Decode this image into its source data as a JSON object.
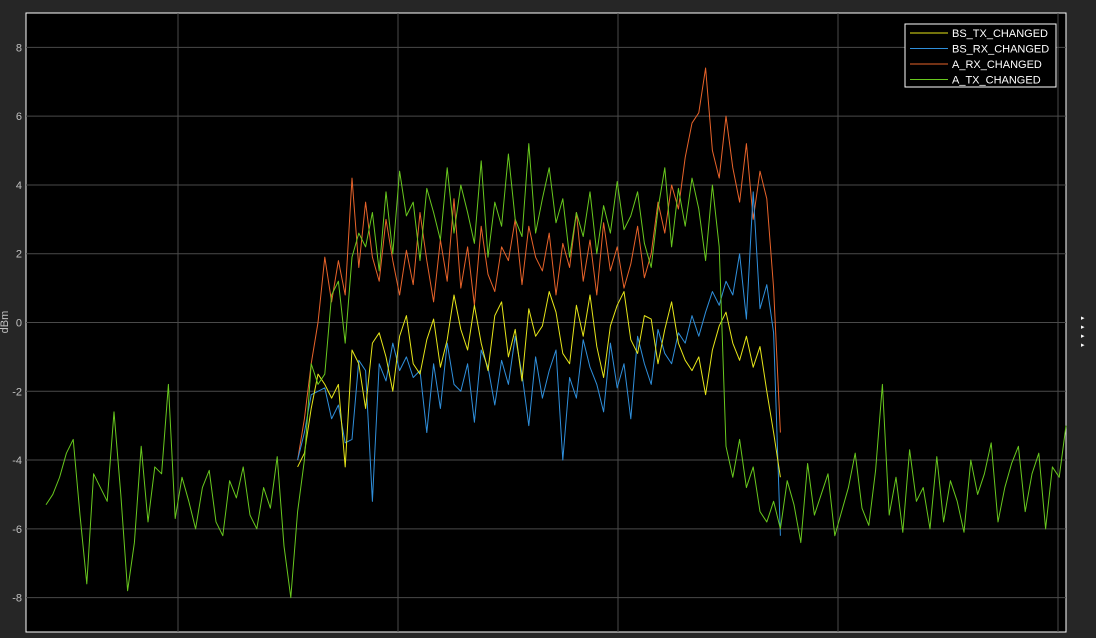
{
  "chart_data": {
    "type": "line",
    "title": "",
    "xlabel": "",
    "ylabel": "dBm",
    "ylim": [
      -9,
      9
    ],
    "xlim": [
      0,
      300
    ],
    "yticks": [
      "-8",
      "-6",
      "-4",
      "-2",
      "0",
      "2",
      "4",
      "6",
      "8"
    ],
    "xticks_gridlines": 5,
    "grid": true,
    "legend_position": "top-right",
    "background": "#000000",
    "series": [
      {
        "name": "BS_TX_CHANGED",
        "color": "#e6e619",
        "x": [
          74,
          76,
          78,
          80,
          82,
          84,
          86,
          88,
          90,
          92,
          94,
          96,
          98,
          100,
          102,
          104,
          106,
          108,
          110,
          112,
          114,
          116,
          118,
          120,
          122,
          124,
          126,
          128,
          130,
          132,
          134,
          136,
          138,
          140,
          142,
          144,
          146,
          148,
          150,
          152,
          154,
          156,
          158,
          160,
          162,
          164,
          166,
          168,
          170,
          172,
          174,
          176,
          178,
          180,
          182,
          184,
          186,
          188,
          190,
          192,
          194,
          196,
          198,
          200,
          202,
          204,
          206,
          208,
          210,
          212,
          214,
          216
        ],
        "values": [
          -4.2,
          -3.8,
          -2.5,
          -1.5,
          -1.8,
          -2.2,
          -1.8,
          -4.2,
          -0.8,
          -1.2,
          -2.5,
          -0.6,
          -0.3,
          -1.0,
          -2.0,
          -0.4,
          0.2,
          -1.2,
          -1.5,
          -0.5,
          0.1,
          -1.3,
          -0.5,
          0.8,
          -0.2,
          -0.8,
          0.5,
          -0.6,
          -1.4,
          0.2,
          0.6,
          -1.0,
          -0.2,
          -1.7,
          0.4,
          -0.4,
          -0.1,
          0.9,
          0.3,
          -0.9,
          -1.2,
          0.5,
          -0.4,
          0.8,
          -0.7,
          -1.6,
          -0.1,
          0.5,
          0.9,
          -0.5,
          -0.9,
          0.2,
          0.1,
          -1.2,
          -0.2,
          0.6,
          -0.6,
          -1.1,
          -1.4,
          -1.0,
          -2.1,
          -0.8,
          -0.1,
          0.3,
          -0.6,
          -1.1,
          -0.4,
          -1.3,
          -0.7,
          -2.0,
          -3.2,
          -4.5
        ]
      },
      {
        "name": "BS_RX_CHANGED",
        "color": "#2f8fdb",
        "x": [
          74,
          76,
          78,
          80,
          82,
          84,
          86,
          88,
          90,
          92,
          94,
          96,
          98,
          100,
          102,
          104,
          106,
          108,
          110,
          112,
          114,
          116,
          118,
          120,
          122,
          124,
          126,
          128,
          130,
          132,
          134,
          136,
          138,
          140,
          142,
          144,
          146,
          148,
          150,
          152,
          154,
          156,
          158,
          160,
          162,
          164,
          166,
          168,
          170,
          172,
          174,
          176,
          178,
          180,
          182,
          184,
          186,
          188,
          190,
          192,
          194,
          196,
          198,
          200,
          202,
          204,
          206,
          208,
          210,
          212,
          214,
          216
        ],
        "values": [
          -4.0,
          -3.2,
          -2.1,
          -2.0,
          -1.9,
          -2.8,
          -2.4,
          -3.5,
          -3.4,
          -1.1,
          -1.4,
          -5.2,
          -1.2,
          -1.7,
          -0.6,
          -1.4,
          -1.0,
          -1.6,
          -1.4,
          -3.2,
          -1.2,
          -2.5,
          -0.6,
          -1.8,
          -2.0,
          -1.2,
          -2.9,
          -0.8,
          -1.3,
          -2.4,
          -1.1,
          -1.8,
          -0.4,
          -1.5,
          -3.0,
          -1.0,
          -2.2,
          -1.4,
          -0.8,
          -4.0,
          -1.6,
          -2.2,
          -0.5,
          -1.3,
          -1.8,
          -2.6,
          -0.6,
          -1.9,
          -1.2,
          -2.8,
          -0.4,
          -1.2,
          -1.8,
          -0.2,
          -0.9,
          -1.2,
          -0.3,
          -0.6,
          0.2,
          -0.4,
          0.3,
          0.9,
          0.5,
          1.2,
          0.8,
          2.0,
          0.1,
          3.8,
          0.4,
          1.1,
          -0.3,
          -6.2
        ]
      },
      {
        "name": "A_RX_CHANGED",
        "color": "#e8632a",
        "x": [
          74,
          76,
          78,
          80,
          82,
          84,
          86,
          88,
          90,
          92,
          94,
          96,
          98,
          100,
          102,
          104,
          106,
          108,
          110,
          112,
          114,
          116,
          118,
          120,
          122,
          124,
          126,
          128,
          130,
          132,
          134,
          136,
          138,
          140,
          142,
          144,
          146,
          148,
          150,
          152,
          154,
          156,
          158,
          160,
          162,
          164,
          166,
          168,
          170,
          172,
          174,
          176,
          178,
          180,
          182,
          184,
          186,
          188,
          190,
          192,
          194,
          196,
          198,
          200,
          202,
          204,
          206,
          208,
          210,
          212,
          214,
          216
        ],
        "values": [
          -4.0,
          -2.8,
          -1.2,
          0.0,
          1.9,
          0.6,
          1.8,
          0.8,
          4.2,
          1.6,
          3.5,
          1.9,
          1.2,
          3.0,
          1.8,
          0.8,
          2.1,
          1.1,
          3.2,
          1.8,
          0.6,
          2.4,
          1.2,
          3.6,
          1.0,
          2.2,
          0.5,
          2.8,
          1.4,
          0.9,
          2.2,
          1.8,
          3.0,
          1.1,
          2.8,
          1.9,
          1.5,
          2.6,
          0.8,
          2.3,
          1.6,
          3.2,
          1.2,
          2.4,
          0.8,
          2.9,
          1.5,
          2.2,
          1.0,
          1.7,
          2.8,
          1.3,
          2.0,
          3.5,
          2.6,
          4.0,
          3.3,
          4.8,
          5.8,
          6.1,
          7.4,
          5.0,
          4.2,
          6.0,
          4.5,
          3.5,
          5.2,
          3.0,
          4.4,
          3.6,
          1.0,
          -3.2
        ]
      },
      {
        "name": "A_TX_CHANGED",
        "color": "#68c81e",
        "x": [
          0,
          2,
          4,
          6,
          8,
          10,
          12,
          14,
          16,
          18,
          20,
          22,
          24,
          26,
          28,
          30,
          32,
          34,
          36,
          38,
          40,
          42,
          44,
          46,
          48,
          50,
          52,
          54,
          56,
          58,
          60,
          62,
          64,
          66,
          68,
          70,
          72,
          74,
          76,
          78,
          80,
          82,
          84,
          86,
          88,
          90,
          92,
          94,
          96,
          98,
          100,
          102,
          104,
          106,
          108,
          110,
          112,
          114,
          116,
          118,
          120,
          122,
          124,
          126,
          128,
          130,
          132,
          134,
          136,
          138,
          140,
          142,
          144,
          146,
          148,
          150,
          152,
          154,
          156,
          158,
          160,
          162,
          164,
          166,
          168,
          170,
          172,
          174,
          176,
          178,
          180,
          182,
          184,
          186,
          188,
          190,
          192,
          194,
          196,
          198,
          200,
          202,
          204,
          206,
          208,
          210,
          212,
          214,
          216,
          218,
          220,
          222,
          224,
          226,
          228,
          230,
          232,
          234,
          236,
          238,
          240,
          242,
          244,
          246,
          248,
          250,
          252,
          254,
          256,
          258,
          260,
          262,
          264,
          266,
          268,
          270,
          272,
          274,
          276,
          278,
          280,
          282,
          284,
          286,
          288,
          290,
          292,
          294,
          296,
          298,
          300
        ],
        "values": [
          -5.3,
          -5.0,
          -4.5,
          -3.8,
          -3.4,
          -5.6,
          -7.6,
          -4.4,
          -4.8,
          -5.2,
          -2.6,
          -5.0,
          -7.8,
          -6.4,
          -3.6,
          -5.8,
          -4.2,
          -4.4,
          -1.8,
          -5.7,
          -4.5,
          -5.2,
          -6.0,
          -4.8,
          -4.3,
          -5.8,
          -6.2,
          -4.6,
          -5.1,
          -4.2,
          -5.6,
          -6.0,
          -4.8,
          -5.4,
          -3.9,
          -6.5,
          -8.0,
          -5.5,
          -4.0,
          -1.2,
          -1.8,
          -1.5,
          0.8,
          1.2,
          -0.6,
          1.9,
          2.6,
          2.2,
          3.2,
          1.5,
          3.8,
          2.0,
          4.4,
          3.1,
          3.5,
          1.8,
          3.9,
          3.2,
          2.4,
          4.5,
          2.6,
          4.0,
          3.2,
          2.3,
          4.7,
          1.9,
          3.5,
          2.8,
          4.9,
          3.0,
          2.5,
          5.2,
          2.6,
          3.6,
          4.5,
          2.9,
          3.6,
          1.9,
          3.2,
          2.5,
          3.8,
          2.0,
          3.4,
          2.6,
          4.1,
          2.7,
          3.1,
          3.8,
          2.3,
          1.6,
          3.3,
          4.5,
          2.2,
          3.9,
          2.8,
          4.2,
          3.3,
          1.8,
          4.0,
          2.2,
          -3.6,
          -4.5,
          -3.4,
          -4.8,
          -4.2,
          -5.5,
          -5.8,
          -5.2,
          -6.0,
          -4.6,
          -5.3,
          -6.4,
          -4.1,
          -5.6,
          -5.0,
          -4.4,
          -6.2,
          -5.5,
          -4.8,
          -3.8,
          -5.4,
          -5.9,
          -4.3,
          -1.8,
          -5.6,
          -4.5,
          -6.1,
          -3.7,
          -5.2,
          -4.8,
          -6.0,
          -3.9,
          -5.8,
          -4.6,
          -5.2,
          -6.1,
          -4.0,
          -5.0,
          -4.4,
          -3.5,
          -5.8,
          -4.8,
          -4.1,
          -3.6,
          -5.5,
          -4.4,
          -3.8,
          -6.0,
          -4.2,
          -4.5,
          -3.0
        ]
      }
    ]
  },
  "ui": {
    "side_arrows": [
      "▸",
      "▸",
      "▸",
      "▸"
    ]
  }
}
